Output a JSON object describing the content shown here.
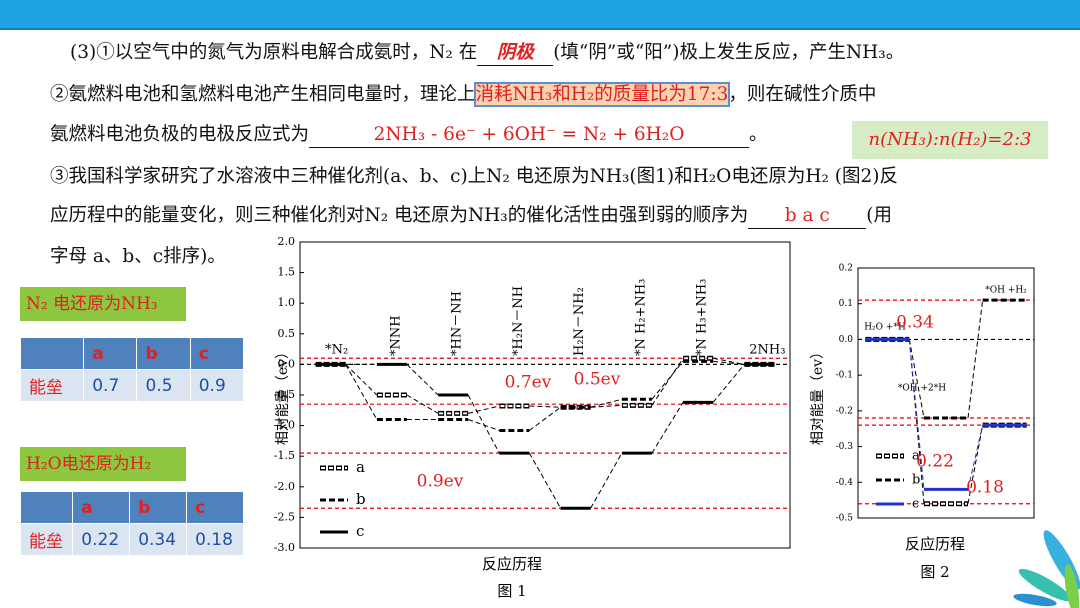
{
  "question": {
    "lines": [
      [
        "(3)①以空气中的氮气为原料电解合成氨时，N₂ 在",
        "阴极",
        "(填“阴”或“阳”)极上发生反应，产生NH₃。"
      ],
      [
        "②氨燃料电池和氢燃料电池产生相同电量时，理论上",
        "消耗NH₃和H₂的质量比为17:3",
        "，则在碱性介质中"
      ],
      [
        "氨燃料电池负极的电极反应式为",
        "2NH₃ - 6e⁻ + 6OH⁻ = N₂ + 6H₂O",
        "。"
      ],
      [
        "③我国科学家研究了水溶液中三种催化剂(a、b、c)上N₂ 电还原为NH₃(图1)和H₂O电还原为H₂ (图2)反"
      ],
      [
        "应历程中的能量变化，则三种催化剂对N₂ 电还原为NH₃的催化活性由强到弱的顺序为",
        "b a c",
        "(用"
      ],
      [
        "字母 a、b、c排序)。"
      ]
    ],
    "note": "n(NH₃):n(H₂)=2:3"
  },
  "tables": [
    {
      "title": "N₂ 电还原为NH₃",
      "header": [
        "a",
        "b",
        "c"
      ],
      "row_label": "能垒",
      "values": [
        0.7,
        0.5,
        0.9
      ]
    },
    {
      "title": "H₂O电还原为H₂",
      "header": [
        "a",
        "b",
        "c"
      ],
      "row_label": "能垒",
      "values": [
        0.22,
        0.34,
        0.18
      ]
    }
  ],
  "chart_data": [
    {
      "type": "step",
      "title": "图 1",
      "xlabel": "反应历程",
      "ylabel": "相对能量（ev）",
      "categories": [
        "*N₂",
        "*NNH",
        "*HN－NH",
        "*H₂N－NH",
        "H₂N－NH₂",
        "*N H₂+NH₃",
        "*N H₃+NH₃",
        "2NH₃"
      ],
      "series": [
        {
          "name": "a",
          "style": "hollow",
          "color": "#000000",
          "values": [
            0,
            -0.5,
            -0.8,
            -0.68,
            -0.7,
            -0.67,
            0.1,
            0
          ]
        },
        {
          "name": "b",
          "style": "dashed",
          "color": "#000000",
          "values": [
            0,
            -0.9,
            -0.9,
            -1.08,
            -0.7,
            -0.57,
            0.05,
            0
          ]
        },
        {
          "name": "c",
          "style": "solid",
          "color": "#000000",
          "values": [
            0,
            0,
            -0.5,
            -1.45,
            -2.35,
            -1.45,
            -0.62,
            0
          ]
        }
      ],
      "ylim": [
        -3,
        2
      ],
      "yticks": [
        {
          "value": 2,
          "label": "2.0"
        },
        1.5,
        {
          "value": 1,
          "label": "1.0"
        },
        0.5,
        {
          "value": 0,
          "label": "0.0"
        },
        -0.5,
        {
          "value": -1,
          "label": "-1.0"
        },
        -1.5,
        {
          "value": -2,
          "label": "-2.0"
        },
        -2.5,
        {
          "value": -3,
          "label": "-3.0"
        }
      ],
      "ref_lines": [
        {
          "value": 0,
          "color": "#000000"
        },
        {
          "value": 0.1,
          "color": "#e00000"
        },
        {
          "value": -0.65,
          "color": "#e00000"
        },
        {
          "value": -1.45,
          "color": "#e00000"
        },
        {
          "value": -2.35,
          "color": "#e00000"
        }
      ],
      "annotations": [
        "0.7ev",
        "0.5ev",
        "0.9ev"
      ],
      "annotation_color": "#e02020",
      "legend": "lower left"
    },
    {
      "type": "step",
      "title": "图 2",
      "xlabel": "反应历程",
      "ylabel": "相对能量（ev）",
      "categories": [
        "H₂O +*H",
        "*OH +2*H",
        "*OH +H₂"
      ],
      "series": [
        {
          "name": "a",
          "style": "hollow",
          "color": "#000000",
          "values": [
            0,
            -0.46,
            -0.24
          ]
        },
        {
          "name": "b",
          "style": "dashed",
          "color": "#000000",
          "values": [
            0,
            -0.22,
            0.11
          ]
        },
        {
          "name": "c",
          "style": "solid",
          "color": "#2233cc",
          "values": [
            0,
            -0.42,
            -0.24
          ]
        }
      ],
      "ylim": [
        -0.5,
        0.2
      ],
      "yticks": [
        0.2,
        0.1,
        {
          "value": 0,
          "label": "0.0"
        },
        -0.1,
        -0.2,
        -0.3,
        -0.4,
        -0.5
      ],
      "ref_lines": [
        {
          "value": 0,
          "color": "#000000"
        },
        {
          "value": 0.11,
          "color": "#e00000"
        },
        {
          "value": -0.22,
          "color": "#e00000"
        },
        {
          "value": -0.24,
          "color": "#e00000"
        },
        {
          "value": -0.46,
          "color": "#e00000"
        }
      ],
      "annotations": [
        "0.34",
        "0.22",
        "0.18"
      ],
      "annotation_color": "#e02020",
      "legend": "lower left"
    }
  ]
}
